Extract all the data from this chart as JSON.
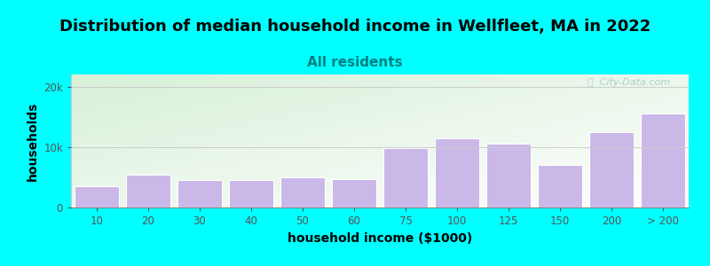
{
  "categories": [
    "10",
    "20",
    "30",
    "40",
    "50",
    "60",
    "75",
    "100",
    "125",
    "150",
    "200",
    "> 200"
  ],
  "values": [
    3500,
    5500,
    4500,
    4500,
    5000,
    4700,
    9800,
    11500,
    10500,
    7000,
    12500,
    15500
  ],
  "bar_color": "#c9b8e8",
  "bar_edge_color": "#ffffff",
  "title": "Distribution of median household income in Wellfleet, MA in 2022",
  "subtitle": "All residents",
  "xlabel": "household income ($1000)",
  "ylabel": "households",
  "ylim": [
    0,
    22000
  ],
  "yticks": [
    0,
    10000,
    20000
  ],
  "ytick_labels": [
    "0",
    "10k",
    "20k"
  ],
  "background_color": "#00ffff",
  "plot_bg_top_left_color": "#d8f0d8",
  "plot_bg_bottom_right_color": "#ffffff",
  "title_fontsize": 13,
  "subtitle_fontsize": 11,
  "subtitle_color": "#008080",
  "axis_label_fontsize": 10,
  "watermark_text": "ⓘ  City-Data.com",
  "watermark_color": "#aacaca"
}
